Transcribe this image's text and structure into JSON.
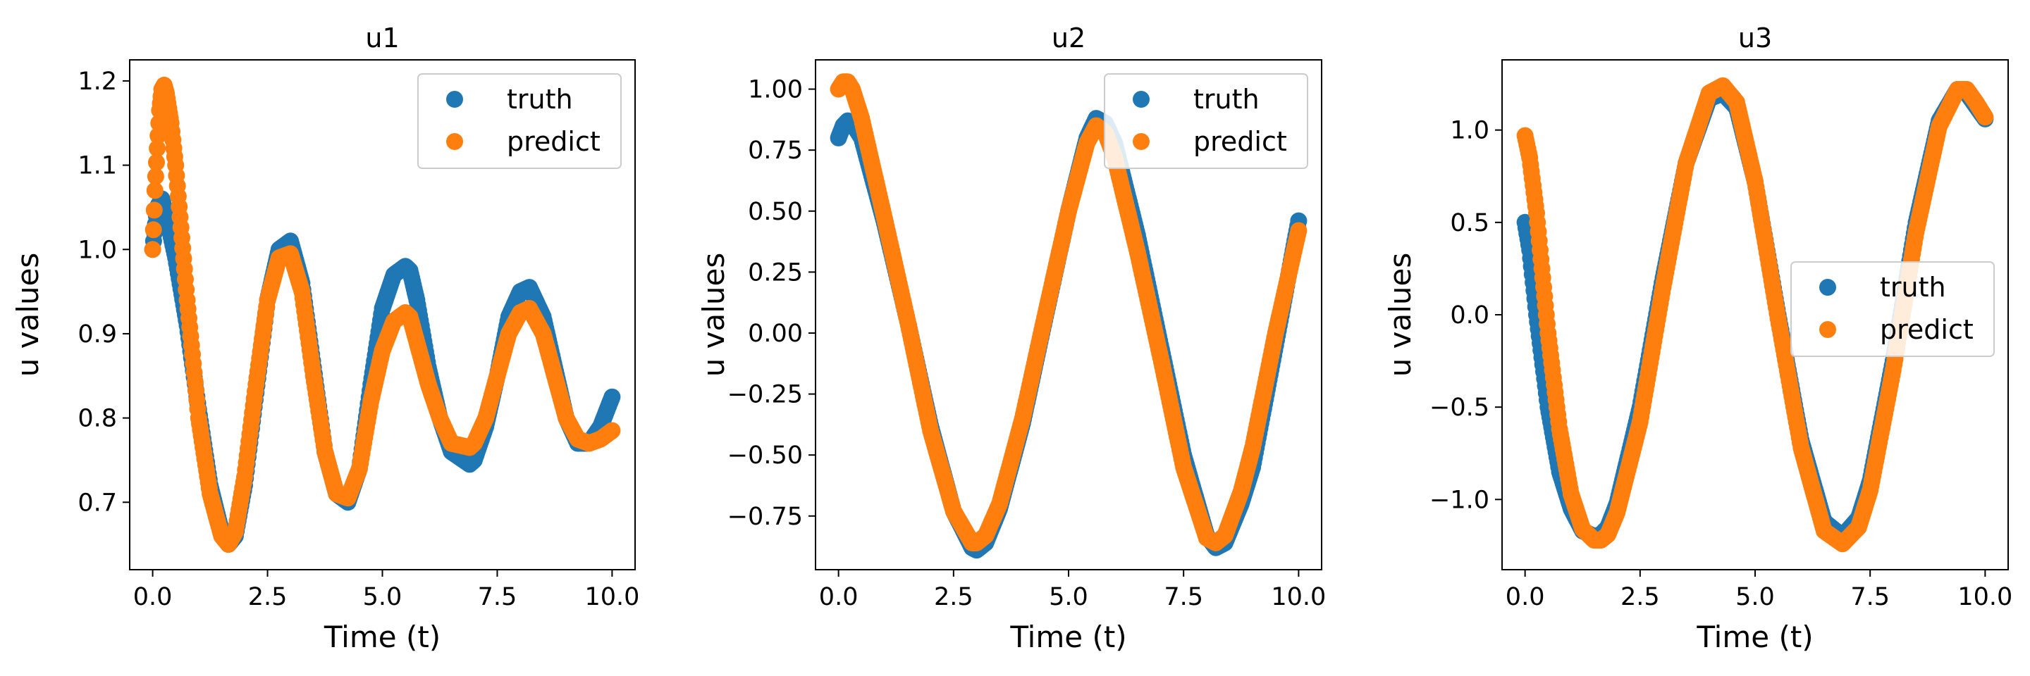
{
  "figure": {
    "background": "#ffffff"
  },
  "chart_data": [
    {
      "type": "scatter",
      "title": "u1",
      "xlabel": "Time (t)",
      "ylabel": "u values",
      "xlim": [
        -0.5,
        10.5
      ],
      "ylim": [
        0.62,
        1.225
      ],
      "xticks": [
        0.0,
        2.5,
        5.0,
        7.5,
        10.0
      ],
      "xtick_labels": [
        "0.0",
        "2.5",
        "5.0",
        "7.5",
        "10.0"
      ],
      "yticks": [
        0.7,
        0.8,
        0.9,
        1.0,
        1.1,
        1.2
      ],
      "ytick_labels": [
        "0.7",
        "0.8",
        "0.9",
        "1.0",
        "1.1",
        "1.2"
      ],
      "grid": false,
      "legend_position": "top-right",
      "series": [
        {
          "name": "truth",
          "color": "#1f77b4",
          "x": [
            0.0,
            0.1,
            0.2,
            0.3,
            0.5,
            0.75,
            1.0,
            1.25,
            1.5,
            1.65,
            1.8,
            2.0,
            2.25,
            2.5,
            2.75,
            3.0,
            3.25,
            3.5,
            3.75,
            4.0,
            4.25,
            4.5,
            4.75,
            5.0,
            5.25,
            5.5,
            5.6,
            5.75,
            6.0,
            6.25,
            6.5,
            6.9,
            7.0,
            7.25,
            7.5,
            7.75,
            8.0,
            8.2,
            8.5,
            8.75,
            9.0,
            9.25,
            9.5,
            9.75,
            10.0
          ],
          "y": [
            1.0,
            1.05,
            1.06,
            1.04,
            0.99,
            0.91,
            0.81,
            0.72,
            0.665,
            0.65,
            0.66,
            0.72,
            0.83,
            0.94,
            1.0,
            1.01,
            0.96,
            0.86,
            0.76,
            0.71,
            0.7,
            0.74,
            0.84,
            0.93,
            0.97,
            0.98,
            0.975,
            0.94,
            0.86,
            0.8,
            0.76,
            0.745,
            0.75,
            0.79,
            0.85,
            0.92,
            0.95,
            0.955,
            0.92,
            0.86,
            0.8,
            0.77,
            0.77,
            0.79,
            0.825
          ]
        },
        {
          "name": "predict",
          "color": "#ff7f0e",
          "x": [
            0.0,
            0.05,
            0.1,
            0.15,
            0.2,
            0.25,
            0.3,
            0.4,
            0.5,
            0.75,
            1.0,
            1.25,
            1.5,
            1.65,
            1.8,
            2.0,
            2.25,
            2.5,
            2.75,
            3.0,
            3.25,
            3.5,
            3.75,
            4.0,
            4.25,
            4.5,
            4.75,
            5.0,
            5.25,
            5.5,
            5.6,
            5.75,
            6.0,
            6.25,
            6.5,
            6.9,
            7.0,
            7.25,
            7.5,
            7.75,
            8.0,
            8.2,
            8.5,
            8.75,
            9.0,
            9.25,
            9.5,
            9.75,
            10.0
          ],
          "y": [
            1.0,
            1.07,
            1.12,
            1.165,
            1.19,
            1.195,
            1.185,
            1.15,
            1.1,
            0.94,
            0.8,
            0.71,
            0.66,
            0.65,
            0.665,
            0.73,
            0.84,
            0.94,
            0.99,
            0.995,
            0.95,
            0.85,
            0.76,
            0.71,
            0.705,
            0.74,
            0.82,
            0.88,
            0.915,
            0.925,
            0.92,
            0.89,
            0.84,
            0.8,
            0.77,
            0.765,
            0.77,
            0.8,
            0.85,
            0.9,
            0.925,
            0.93,
            0.9,
            0.85,
            0.8,
            0.775,
            0.77,
            0.775,
            0.785
          ]
        }
      ]
    },
    {
      "type": "scatter",
      "title": "u2",
      "xlabel": "Time (t)",
      "ylabel": "u values",
      "xlim": [
        -0.5,
        10.5
      ],
      "ylim": [
        -0.97,
        1.12
      ],
      "xticks": [
        0.0,
        2.5,
        5.0,
        7.5,
        10.0
      ],
      "xtick_labels": [
        "0.0",
        "2.5",
        "5.0",
        "7.5",
        "10.0"
      ],
      "yticks": [
        -0.75,
        -0.5,
        -0.25,
        0.0,
        0.25,
        0.5,
        0.75,
        1.0
      ],
      "ytick_labels": [
        "−0.75",
        "−0.50",
        "−0.25",
        "0.00",
        "0.25",
        "0.50",
        "0.75",
        "1.00"
      ],
      "grid": false,
      "legend_position": "top-right",
      "series": [
        {
          "name": "truth",
          "color": "#1f77b4",
          "x": [
            0.0,
            0.1,
            0.2,
            0.3,
            0.5,
            1.0,
            1.5,
            2.0,
            2.5,
            2.9,
            3.0,
            3.2,
            3.5,
            4.0,
            4.5,
            5.0,
            5.4,
            5.6,
            5.8,
            6.0,
            6.5,
            7.0,
            7.5,
            8.0,
            8.2,
            8.4,
            8.75,
            9.0,
            9.5,
            10.0
          ],
          "y": [
            0.8,
            0.85,
            0.87,
            0.86,
            0.8,
            0.45,
            0.05,
            -0.38,
            -0.73,
            -0.88,
            -0.89,
            -0.86,
            -0.72,
            -0.37,
            0.07,
            0.5,
            0.8,
            0.88,
            0.86,
            0.78,
            0.4,
            -0.05,
            -0.5,
            -0.83,
            -0.88,
            -0.86,
            -0.7,
            -0.55,
            -0.05,
            0.46
          ]
        },
        {
          "name": "predict",
          "color": "#ff7f0e",
          "x": [
            0.0,
            0.1,
            0.2,
            0.3,
            0.5,
            1.0,
            1.5,
            2.0,
            2.5,
            2.9,
            3.0,
            3.2,
            3.5,
            4.0,
            4.5,
            5.0,
            5.4,
            5.6,
            5.8,
            6.0,
            6.5,
            7.0,
            7.5,
            8.0,
            8.2,
            8.4,
            8.75,
            9.0,
            9.5,
            10.0
          ],
          "y": [
            1.0,
            1.03,
            1.03,
            1.0,
            0.88,
            0.47,
            0.05,
            -0.4,
            -0.73,
            -0.86,
            -0.86,
            -0.83,
            -0.7,
            -0.35,
            0.08,
            0.5,
            0.78,
            0.85,
            0.82,
            0.72,
            0.33,
            -0.1,
            -0.55,
            -0.84,
            -0.86,
            -0.83,
            -0.65,
            -0.47,
            0.0,
            0.42
          ]
        }
      ]
    },
    {
      "type": "scatter",
      "title": "u3",
      "xlabel": "Time (t)",
      "ylabel": "u values",
      "xlim": [
        -0.5,
        10.5
      ],
      "ylim": [
        -1.38,
        1.38
      ],
      "xticks": [
        0.0,
        2.5,
        5.0,
        7.5,
        10.0
      ],
      "xtick_labels": [
        "0.0",
        "2.5",
        "5.0",
        "7.5",
        "10.0"
      ],
      "yticks": [
        -1.0,
        -0.5,
        0.0,
        0.5,
        1.0
      ],
      "ytick_labels": [
        "−1.0",
        "−0.5",
        "0.0",
        "0.5",
        "1.0"
      ],
      "grid": false,
      "legend_position": "center-right",
      "series": [
        {
          "name": "truth",
          "color": "#1f77b4",
          "x": [
            0.0,
            0.1,
            0.25,
            0.5,
            0.75,
            1.0,
            1.25,
            1.5,
            1.65,
            1.8,
            2.0,
            2.5,
            3.0,
            3.5,
            4.0,
            4.3,
            4.6,
            5.0,
            5.5,
            6.0,
            6.5,
            6.9,
            7.25,
            7.5,
            8.0,
            8.5,
            9.0,
            9.4,
            9.6,
            9.8,
            10.0
          ],
          "y": [
            0.5,
            0.35,
            0.0,
            -0.5,
            -0.85,
            -1.05,
            -1.17,
            -1.2,
            -1.19,
            -1.15,
            -1.02,
            -0.5,
            0.2,
            0.82,
            1.17,
            1.2,
            1.12,
            0.72,
            0.0,
            -0.68,
            -1.12,
            -1.2,
            -1.1,
            -0.9,
            -0.25,
            0.5,
            1.05,
            1.22,
            1.2,
            1.13,
            1.06
          ]
        },
        {
          "name": "predict",
          "color": "#ff7f0e",
          "x": [
            0.0,
            0.1,
            0.25,
            0.5,
            0.75,
            1.0,
            1.25,
            1.5,
            1.65,
            1.8,
            2.0,
            2.5,
            3.0,
            3.5,
            4.0,
            4.3,
            4.6,
            5.0,
            5.5,
            6.0,
            6.5,
            6.9,
            7.25,
            7.5,
            8.0,
            8.5,
            9.0,
            9.4,
            9.6,
            9.8,
            10.0
          ],
          "y": [
            0.97,
            0.85,
            0.55,
            -0.1,
            -0.62,
            -0.97,
            -1.16,
            -1.22,
            -1.22,
            -1.19,
            -1.07,
            -0.58,
            0.15,
            0.82,
            1.2,
            1.24,
            1.15,
            0.72,
            -0.02,
            -0.72,
            -1.17,
            -1.24,
            -1.15,
            -0.95,
            -0.3,
            0.45,
            1.02,
            1.22,
            1.22,
            1.15,
            1.07
          ]
        }
      ]
    }
  ]
}
